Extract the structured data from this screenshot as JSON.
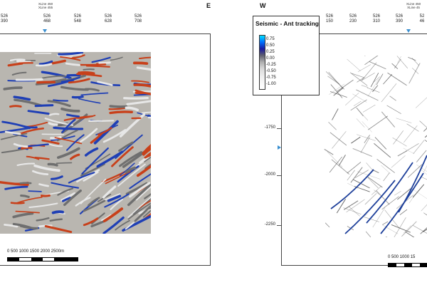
{
  "left": {
    "compass": "E",
    "xline_labels": [
      "XLine 450",
      "XLine 455"
    ],
    "ticks": [
      {
        "top": "526",
        "bottom": "390"
      },
      {
        "top": "526",
        "bottom": "468"
      },
      {
        "top": "526",
        "bottom": "548"
      },
      {
        "top": "526",
        "bottom": "628"
      },
      {
        "top": "526",
        "bottom": "708"
      }
    ],
    "scale_text": "0  500  1000  1500  2000  2500m"
  },
  "right": {
    "compass": "W",
    "xline_labels": [
      "XLine 450",
      "XLine 45"
    ],
    "ticks": [
      {
        "top": "526",
        "bottom": "150"
      },
      {
        "top": "526",
        "bottom": "230"
      },
      {
        "top": "526",
        "bottom": "310"
      },
      {
        "top": "526",
        "bottom": "390"
      },
      {
        "top": "52",
        "bottom": "46"
      }
    ],
    "y_ticks": [
      "-1750",
      "-2000",
      "-2250"
    ],
    "scale_text": "0  500  1000  15"
  },
  "legend": {
    "title": "Seismic - Ant tracking",
    "values": [
      "0.75",
      "0.50",
      "0.25",
      "0.00",
      "-0.25",
      "-0.50",
      "-0.75",
      "-1.00"
    ]
  },
  "colors": {
    "seismic_red": "#c8401a",
    "seismic_blue": "#1f3fb5",
    "ant_line": "#303030",
    "ant_highlight": "#1d3f9a",
    "marker": "#3a8fd0"
  }
}
